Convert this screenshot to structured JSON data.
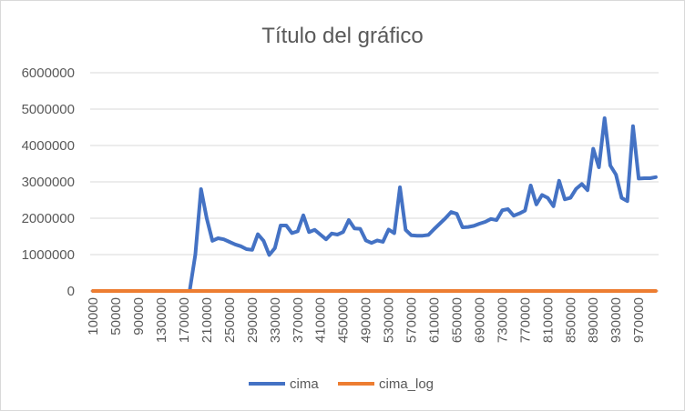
{
  "chart_data": {
    "type": "line",
    "title": "Título del gráfico",
    "xlabel": "",
    "ylabel": "",
    "ylim": [
      0,
      6000000
    ],
    "yticks": [
      0,
      1000000,
      2000000,
      3000000,
      4000000,
      5000000,
      6000000
    ],
    "ytick_labels": [
      "0",
      "1000000",
      "2000000",
      "3000000",
      "4000000",
      "5000000",
      "6000000"
    ],
    "x": [
      10000,
      20000,
      30000,
      40000,
      50000,
      60000,
      70000,
      80000,
      90000,
      100000,
      110000,
      120000,
      130000,
      140000,
      150000,
      160000,
      170000,
      180000,
      190000,
      200000,
      210000,
      220000,
      230000,
      240000,
      250000,
      260000,
      270000,
      280000,
      290000,
      300000,
      310000,
      320000,
      330000,
      340000,
      350000,
      360000,
      370000,
      380000,
      390000,
      400000,
      410000,
      420000,
      430000,
      440000,
      450000,
      460000,
      470000,
      480000,
      490000,
      500000,
      510000,
      520000,
      530000,
      540000,
      550000,
      560000,
      570000,
      580000,
      590000,
      600000,
      610000,
      620000,
      630000,
      640000,
      650000,
      660000,
      670000,
      680000,
      690000,
      700000,
      710000,
      720000,
      730000,
      740000,
      750000,
      760000,
      770000,
      780000,
      790000,
      800000,
      810000,
      820000,
      830000,
      840000,
      850000,
      860000,
      870000,
      880000,
      890000,
      900000,
      910000,
      920000,
      930000,
      940000,
      950000,
      960000,
      970000,
      980000,
      990000,
      1000000
    ],
    "xtick_labels": [
      "10000",
      "50000",
      "90000",
      "130000",
      "170000",
      "210000",
      "250000",
      "290000",
      "330000",
      "370000",
      "410000",
      "450000",
      "490000",
      "530000",
      "570000",
      "610000",
      "650000",
      "690000",
      "730000",
      "770000",
      "810000",
      "850000",
      "890000",
      "930000",
      "970000"
    ],
    "series": [
      {
        "name": "cima",
        "color": "#4472c4",
        "values": [
          0,
          0,
          0,
          0,
          0,
          0,
          0,
          0,
          0,
          0,
          0,
          0,
          0,
          0,
          0,
          0,
          0,
          0,
          1000000,
          2800000,
          2000000,
          1380000,
          1450000,
          1420000,
          1350000,
          1280000,
          1230000,
          1150000,
          1130000,
          1560000,
          1380000,
          990000,
          1180000,
          1800000,
          1800000,
          1590000,
          1640000,
          2080000,
          1620000,
          1680000,
          1550000,
          1420000,
          1580000,
          1550000,
          1620000,
          1950000,
          1720000,
          1710000,
          1390000,
          1320000,
          1390000,
          1350000,
          1690000,
          1590000,
          2850000,
          1680000,
          1530000,
          1520000,
          1520000,
          1540000,
          1700000,
          1850000,
          2000000,
          2170000,
          2120000,
          1750000,
          1760000,
          1790000,
          1850000,
          1900000,
          1980000,
          1950000,
          2220000,
          2250000,
          2070000,
          2130000,
          2210000,
          2900000,
          2380000,
          2640000,
          2560000,
          2330000,
          3030000,
          2520000,
          2560000,
          2810000,
          2940000,
          2770000,
          3910000,
          3400000,
          4750000,
          3450000,
          3200000,
          2560000,
          2470000,
          4530000,
          3090000,
          3100000,
          3100000,
          3130000
        ]
      },
      {
        "name": "cima_log",
        "color": "#ed7d31",
        "values": [
          4.0,
          4.3,
          4.5,
          4.6,
          4.7,
          4.8,
          4.8,
          4.9,
          5.0,
          5.0,
          5.0,
          5.1,
          5.1,
          5.1,
          5.2,
          5.2,
          5.2,
          5.3,
          5.3,
          5.3,
          5.3,
          5.3,
          5.4,
          5.4,
          5.4,
          5.4,
          5.4,
          5.4,
          5.5,
          5.5,
          5.5,
          5.5,
          5.5,
          5.5,
          5.5,
          5.6,
          5.6,
          5.6,
          5.6,
          5.6,
          5.6,
          5.6,
          5.6,
          5.6,
          5.7,
          5.7,
          5.7,
          5.7,
          5.7,
          5.7,
          5.7,
          5.7,
          5.7,
          5.7,
          5.7,
          5.7,
          5.8,
          5.8,
          5.8,
          5.8,
          5.8,
          5.8,
          5.8,
          5.8,
          5.8,
          5.8,
          5.8,
          5.8,
          5.8,
          5.8,
          5.9,
          5.9,
          5.9,
          5.9,
          5.9,
          5.9,
          5.9,
          5.9,
          5.9,
          5.9,
          5.9,
          5.9,
          5.9,
          5.9,
          5.9,
          5.9,
          5.9,
          5.9,
          5.9,
          5.9,
          6.0,
          6.0,
          6.0,
          6.0,
          6.0,
          6.0,
          6.0,
          6.0,
          6.0,
          6.0
        ]
      }
    ],
    "grid": true,
    "legend_position": "bottom"
  }
}
